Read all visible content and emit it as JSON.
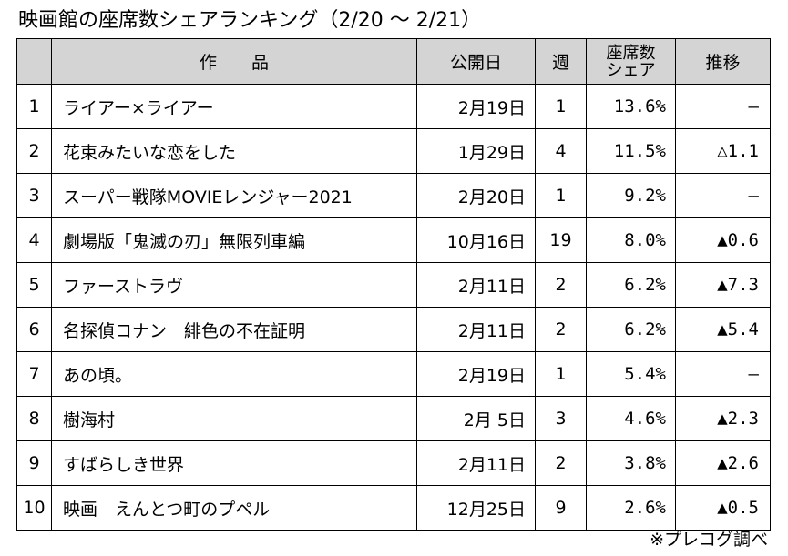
{
  "title": "映画館の座席数シェアランキング（2/20 ～ 2/21）",
  "table": {
    "headers": {
      "rank": "",
      "film": "作　　品",
      "release": "公開日",
      "week": "週",
      "share_line1": "座席数",
      "share_line2": "シェア",
      "change": "推移"
    },
    "rows": [
      {
        "rank": "1",
        "film": "ライアー×ライアー",
        "release": "2月19日",
        "week": "1",
        "share": "13.6%",
        "change": "—"
      },
      {
        "rank": "2",
        "film": "花束みたいな恋をした",
        "release": "1月29日",
        "week": "4",
        "share": "11.5%",
        "change": "△1.1"
      },
      {
        "rank": "3",
        "film": "スーパー戦隊MOVIEレンジャー2021",
        "release": "2月20日",
        "week": "1",
        "share": "9.2%",
        "change": "—"
      },
      {
        "rank": "4",
        "film": "劇場版「鬼滅の刃」無限列車編",
        "release": "10月16日",
        "week": "19",
        "share": "8.0%",
        "change": "▲0.6"
      },
      {
        "rank": "5",
        "film": "ファーストラヴ",
        "release": "2月11日",
        "week": "2",
        "share": "6.2%",
        "change": "▲7.3"
      },
      {
        "rank": "6",
        "film": "名探偵コナン　緋色の不在証明",
        "release": "2月11日",
        "week": "2",
        "share": "6.2%",
        "change": "▲5.4"
      },
      {
        "rank": "7",
        "film": "あの頃。",
        "release": "2月19日",
        "week": "1",
        "share": "5.4%",
        "change": "—"
      },
      {
        "rank": "8",
        "film": "樹海村",
        "release": "2月 5日",
        "week": "3",
        "share": "4.6%",
        "change": "▲2.3"
      },
      {
        "rank": "9",
        "film": "すばらしき世界",
        "release": "2月11日",
        "week": "2",
        "share": "3.8%",
        "change": "▲2.6"
      },
      {
        "rank": "10",
        "film": "映画　えんとつ町のプペル",
        "release": "12月25日",
        "week": "9",
        "share": "2.6%",
        "change": "▲0.5"
      }
    ]
  },
  "source": "※プレコグ調べ",
  "colors": {
    "header_bg": "#d4d4d4",
    "border": "#000000"
  }
}
